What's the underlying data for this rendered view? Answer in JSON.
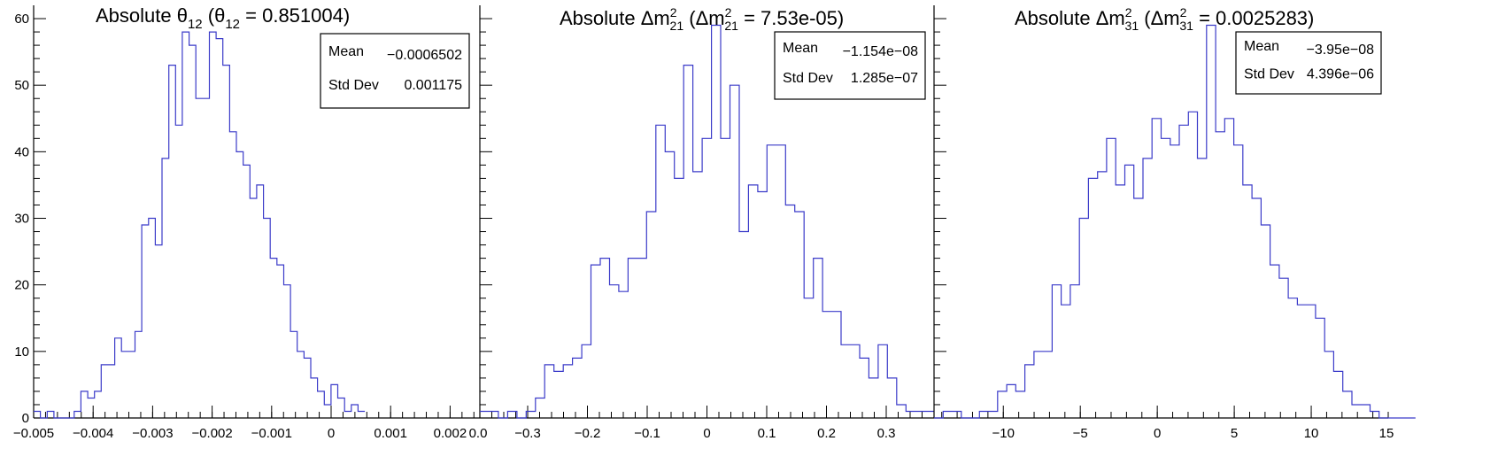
{
  "chart_data": [
    {
      "type": "histogram",
      "title_main": "Absolute θ",
      "title_sub": "12",
      "title_mid": " (θ",
      "title_mid_sub": "12",
      "title_tail": " = 0.851004)",
      "xlim": [
        -0.005,
        0.0025
      ],
      "ylim": [
        0,
        62
      ],
      "x_ticks": [
        -0.005,
        -0.004,
        -0.003,
        -0.002,
        -0.001,
        0,
        0.001,
        0.002
      ],
      "x_tick_labels": [
        "−0.005",
        "−0.004",
        "−0.003",
        "−0.002",
        "−0.001",
        "0",
        "0.001",
        "0.002"
      ],
      "x_ticklabel_tail": "0.0",
      "y_ticks": [
        0,
        10,
        20,
        30,
        40,
        50,
        60
      ],
      "y_tick_labels": [
        "0",
        "10",
        "20",
        "30",
        "40",
        "50",
        "60"
      ],
      "bin_start": -0.005,
      "bin_width": 0.0001136,
      "counts": [
        1,
        0,
        1,
        0,
        0,
        0,
        1,
        4,
        3,
        4,
        8,
        8,
        12,
        10,
        10,
        13,
        29,
        30,
        26,
        39,
        53,
        44,
        58,
        56,
        48,
        48,
        58,
        57,
        53,
        43,
        40,
        38,
        33,
        35,
        30,
        24,
        23,
        20,
        13,
        10,
        9,
        6,
        4,
        2,
        5,
        3,
        1,
        2,
        1
      ],
      "stats": {
        "mean_label": "Mean",
        "mean": "−0.0006502",
        "std_label": "Std Dev",
        "std": "0.001175"
      }
    },
    {
      "type": "histogram",
      "title_main": "Absolute Δm",
      "title_sup": "2",
      "title_sub": "21",
      "title_mid": " (Δm",
      "title_mid_sup": "2",
      "title_mid_sub": "21",
      "title_tail": " = 7.53e-05)",
      "xlim": [
        -0.38,
        0.38
      ],
      "ylim": [
        0,
        62
      ],
      "x_ticks": [
        -0.3,
        -0.2,
        -0.1,
        0,
        0.1,
        0.2,
        0.3
      ],
      "x_tick_labels": [
        "−0.3",
        "−0.2",
        "−0.1",
        "0",
        "0.1",
        "0.2",
        "0.3"
      ],
      "bin_start": -0.38,
      "bin_width": 0.0155,
      "counts": [
        1,
        1,
        0,
        1,
        0,
        1,
        3,
        8,
        7,
        8,
        9,
        11,
        23,
        24,
        20,
        19,
        24,
        24,
        31,
        44,
        40,
        36,
        53,
        37,
        42,
        59,
        42,
        50,
        28,
        35,
        34,
        41,
        41,
        32,
        31,
        18,
        24,
        16,
        16,
        11,
        11,
        9,
        6,
        11,
        6,
        2,
        1,
        1,
        1,
        1
      ],
      "stats": {
        "mean_label": "Mean",
        "mean": "−1.154e−08",
        "std_label": "Std Dev",
        "std": "1.285e−07"
      }
    },
    {
      "type": "histogram",
      "title_main": "Absolute Δm",
      "title_sup": "2",
      "title_sub": "31",
      "title_mid": " (Δm",
      "title_mid_sup": "2",
      "title_mid_sub": "31",
      "title_tail": " = 0.0025283)",
      "xlim": [
        -14.5,
        15
      ],
      "ylim": [
        0,
        62
      ],
      "x_ticks": [
        -10,
        -5,
        0,
        5,
        10
      ],
      "x_tick_labels": [
        "−10",
        "−5",
        "0",
        "5",
        "10"
      ],
      "x_ticklabel_tail": "15",
      "bin_start": -14.5,
      "bin_width": 0.59,
      "counts": [
        0,
        1,
        1,
        0,
        0,
        1,
        1,
        4,
        5,
        4,
        8,
        10,
        10,
        20,
        17,
        20,
        30,
        36,
        37,
        42,
        35,
        38,
        33,
        39,
        45,
        42,
        41,
        44,
        46,
        39,
        59,
        43,
        45,
        41,
        35,
        33,
        29,
        23,
        21,
        18,
        17,
        17,
        15,
        10,
        7,
        4,
        2,
        2,
        1,
        0,
        0,
        0,
        0,
        0
      ],
      "stats": {
        "mean_label": "Mean",
        "mean": "−3.95e−08",
        "std_label": "Std Dev",
        "std": "4.396e−06"
      }
    }
  ]
}
